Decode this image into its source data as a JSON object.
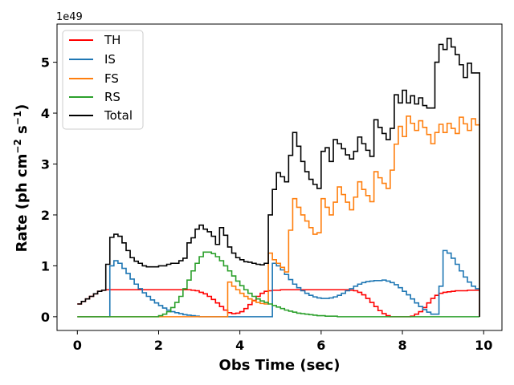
{
  "chart_data": {
    "type": "line",
    "step": true,
    "xlabel": "Obs Time (sec)",
    "ylabel": "Rate (ph cm",
    "ylabel_exp1": "−2",
    "ylabel_mid": " s",
    "ylabel_exp2": "−1",
    "ylabel_end": ")",
    "y_offset_text": "1e49",
    "xlim": [
      -0.5,
      10.45
    ],
    "ylim": [
      -0.27,
      5.75
    ],
    "xticks": [
      0,
      2,
      4,
      6,
      8,
      10
    ],
    "xtick_labels": [
      "0",
      "2",
      "4",
      "6",
      "8",
      "10"
    ],
    "yticks": [
      0,
      1,
      2,
      3,
      4,
      5
    ],
    "ytick_labels": [
      "0",
      "1",
      "2",
      "3",
      "4",
      "5"
    ],
    "grid": false,
    "legend_position": "top-left",
    "x": [
      0.0,
      0.1,
      0.2,
      0.3,
      0.4,
      0.5,
      0.6,
      0.7,
      0.8,
      0.9,
      1.0,
      1.1,
      1.2,
      1.3,
      1.4,
      1.5,
      1.6,
      1.7,
      1.8,
      1.9,
      2.0,
      2.1,
      2.2,
      2.3,
      2.4,
      2.5,
      2.6,
      2.7,
      2.8,
      2.9,
      3.0,
      3.1,
      3.2,
      3.3,
      3.4,
      3.5,
      3.6,
      3.7,
      3.8,
      3.9,
      4.0,
      4.1,
      4.2,
      4.3,
      4.4,
      4.5,
      4.6,
      4.7,
      4.8,
      4.9,
      5.0,
      5.1,
      5.2,
      5.3,
      5.4,
      5.5,
      5.6,
      5.7,
      5.8,
      5.9,
      6.0,
      6.1,
      6.2,
      6.3,
      6.4,
      6.5,
      6.6,
      6.7,
      6.8,
      6.9,
      7.0,
      7.1,
      7.2,
      7.3,
      7.4,
      7.5,
      7.6,
      7.7,
      7.8,
      7.9,
      8.0,
      8.1,
      8.2,
      8.3,
      8.4,
      8.5,
      8.6,
      8.7,
      8.8,
      8.9,
      9.0,
      9.1,
      9.2,
      9.3,
      9.4,
      9.5,
      9.6,
      9.7,
      9.8
    ],
    "x_end": 9.9,
    "series": [
      {
        "name": "TH",
        "color": "#ff0000",
        "values": [
          0.25,
          0.3,
          0.35,
          0.4,
          0.45,
          0.5,
          0.52,
          0.53,
          0.53,
          0.53,
          0.53,
          0.53,
          0.53,
          0.53,
          0.53,
          0.53,
          0.53,
          0.53,
          0.53,
          0.53,
          0.53,
          0.53,
          0.53,
          0.53,
          0.53,
          0.53,
          0.53,
          0.53,
          0.52,
          0.51,
          0.48,
          0.45,
          0.4,
          0.34,
          0.27,
          0.2,
          0.13,
          0.08,
          0.06,
          0.07,
          0.1,
          0.16,
          0.24,
          0.32,
          0.4,
          0.46,
          0.5,
          0.51,
          0.52,
          0.52,
          0.53,
          0.53,
          0.53,
          0.53,
          0.53,
          0.53,
          0.53,
          0.53,
          0.53,
          0.53,
          0.53,
          0.53,
          0.53,
          0.53,
          0.53,
          0.53,
          0.53,
          0.52,
          0.51,
          0.48,
          0.43,
          0.36,
          0.28,
          0.2,
          0.12,
          0.06,
          0.02,
          0.0,
          0.0,
          0.0,
          0.0,
          0.0,
          0.01,
          0.05,
          0.1,
          0.18,
          0.27,
          0.36,
          0.42,
          0.46,
          0.48,
          0.49,
          0.5,
          0.51,
          0.51,
          0.51,
          0.52,
          0.52,
          0.52
        ]
      },
      {
        "name": "IS",
        "color": "#1f77b4",
        "values": [
          0.0,
          0.0,
          0.0,
          0.0,
          0.0,
          0.0,
          0.0,
          0.0,
          1.0,
          1.1,
          1.05,
          0.95,
          0.85,
          0.74,
          0.64,
          0.55,
          0.47,
          0.4,
          0.33,
          0.27,
          0.22,
          0.17,
          0.13,
          0.1,
          0.08,
          0.06,
          0.04,
          0.03,
          0.02,
          0.01,
          0.0,
          0.0,
          0.0,
          0.0,
          0.0,
          0.0,
          0.0,
          0.0,
          0.0,
          0.0,
          0.0,
          0.0,
          0.0,
          0.0,
          0.0,
          0.0,
          0.0,
          0.0,
          1.05,
          1.0,
          0.92,
          0.83,
          0.73,
          0.64,
          0.57,
          0.51,
          0.46,
          0.42,
          0.39,
          0.37,
          0.36,
          0.36,
          0.37,
          0.39,
          0.42,
          0.46,
          0.51,
          0.55,
          0.6,
          0.64,
          0.67,
          0.69,
          0.7,
          0.71,
          0.71,
          0.72,
          0.7,
          0.67,
          0.63,
          0.57,
          0.5,
          0.43,
          0.35,
          0.27,
          0.2,
          0.14,
          0.09,
          0.05,
          0.05,
          0.6,
          1.3,
          1.25,
          1.15,
          1.03,
          0.9,
          0.78,
          0.68,
          0.6,
          0.55
        ]
      },
      {
        "name": "FS",
        "color": "#ff7f0e",
        "values": [
          0.0,
          0.0,
          0.0,
          0.0,
          0.0,
          0.0,
          0.0,
          0.0,
          0.0,
          0.0,
          0.0,
          0.0,
          0.0,
          0.0,
          0.0,
          0.0,
          0.0,
          0.0,
          0.0,
          0.0,
          0.0,
          0.0,
          0.0,
          0.0,
          0.0,
          0.0,
          0.0,
          0.0,
          0.0,
          0.0,
          0.0,
          0.0,
          0.0,
          0.0,
          0.0,
          0.0,
          0.0,
          0.68,
          0.6,
          0.53,
          0.46,
          0.4,
          0.35,
          0.31,
          0.28,
          0.26,
          0.25,
          1.25,
          1.12,
          1.05,
          0.97,
          0.88,
          1.7,
          2.32,
          2.15,
          2.0,
          1.88,
          1.75,
          1.62,
          1.65,
          2.32,
          2.15,
          2.0,
          2.25,
          2.55,
          2.4,
          2.25,
          2.1,
          2.35,
          2.65,
          2.5,
          2.38,
          2.26,
          2.85,
          2.73,
          2.62,
          2.52,
          2.88,
          3.39,
          3.74,
          3.54,
          3.94,
          3.8,
          3.66,
          3.85,
          3.72,
          3.58,
          3.4,
          3.62,
          3.78,
          3.62,
          3.8,
          3.7,
          3.6,
          3.92,
          3.79,
          3.66,
          3.89,
          3.77
        ]
      },
      {
        "name": "RS",
        "color": "#2ca02c",
        "values": [
          0.0,
          0.0,
          0.0,
          0.0,
          0.0,
          0.0,
          0.0,
          0.0,
          0.0,
          0.0,
          0.0,
          0.0,
          0.0,
          0.0,
          0.0,
          0.0,
          0.0,
          0.0,
          0.0,
          0.0,
          0.02,
          0.05,
          0.1,
          0.18,
          0.28,
          0.4,
          0.55,
          0.72,
          0.9,
          1.05,
          1.18,
          1.27,
          1.27,
          1.24,
          1.18,
          1.1,
          1.0,
          0.9,
          0.8,
          0.7,
          0.61,
          0.53,
          0.46,
          0.4,
          0.35,
          0.31,
          0.28,
          0.25,
          0.22,
          0.19,
          0.16,
          0.13,
          0.11,
          0.09,
          0.07,
          0.06,
          0.05,
          0.04,
          0.03,
          0.02,
          0.02,
          0.01,
          0.01,
          0.01,
          0.0,
          0.0,
          0.0,
          0.0,
          0.0,
          0.0,
          0.0,
          0.0,
          0.0,
          0.0,
          0.0,
          0.0,
          0.0,
          0.0,
          0.0,
          0.0,
          0.0,
          0.0,
          0.0,
          0.0,
          0.0,
          0.0,
          0.0,
          0.0,
          0.0,
          0.0,
          0.0,
          0.0,
          0.0,
          0.0,
          0.0,
          0.0,
          0.0,
          0.0,
          0.0
        ]
      },
      {
        "name": "Total",
        "color": "#000000",
        "values": [
          0.25,
          0.3,
          0.35,
          0.4,
          0.45,
          0.5,
          0.52,
          1.03,
          1.56,
          1.62,
          1.58,
          1.45,
          1.3,
          1.16,
          1.09,
          1.05,
          1.0,
          0.98,
          0.98,
          0.98,
          1.0,
          1.0,
          1.03,
          1.05,
          1.05,
          1.1,
          1.15,
          1.45,
          1.55,
          1.72,
          1.8,
          1.72,
          1.67,
          1.58,
          1.42,
          1.75,
          1.6,
          1.37,
          1.25,
          1.16,
          1.12,
          1.08,
          1.07,
          1.05,
          1.03,
          1.02,
          1.05,
          2.0,
          2.5,
          2.83,
          2.75,
          2.65,
          3.17,
          3.62,
          3.35,
          3.05,
          2.85,
          2.7,
          2.6,
          2.52,
          3.25,
          3.32,
          3.05,
          3.48,
          3.4,
          3.3,
          3.18,
          3.1,
          3.25,
          3.53,
          3.4,
          3.27,
          3.15,
          3.87,
          3.72,
          3.6,
          3.48,
          3.7,
          4.36,
          4.2,
          4.45,
          4.2,
          4.34,
          4.18,
          4.3,
          4.15,
          4.1,
          4.1,
          5.0,
          5.35,
          5.25,
          5.47,
          5.3,
          5.15,
          4.95,
          4.7,
          4.98,
          4.79,
          4.79
        ]
      }
    ]
  }
}
